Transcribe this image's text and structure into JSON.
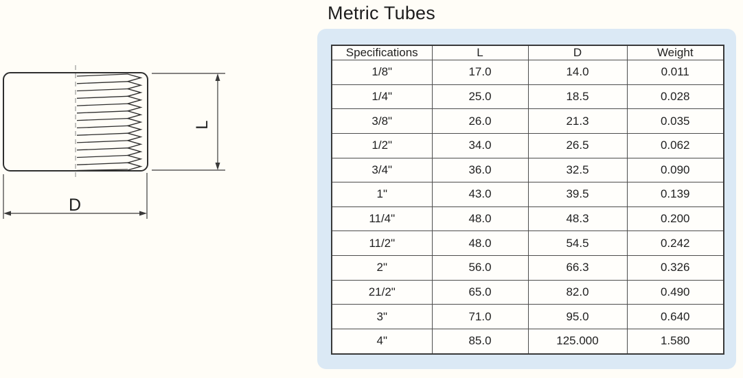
{
  "page": {
    "background": "#fffdf7"
  },
  "header": {
    "title": "Metric Tubes"
  },
  "diagram": {
    "d_label": "D",
    "l_label": "L"
  },
  "table": {
    "panel_color": "#dbe9f5",
    "border_color": "#383838",
    "headers": [
      "Specifications",
      "L",
      "D",
      "Weight"
    ],
    "rows": [
      [
        "1/8\"",
        "17.0",
        "14.0",
        "0.011"
      ],
      [
        "1/4\"",
        "25.0",
        "18.5",
        "0.028"
      ],
      [
        "3/8\"",
        "26.0",
        "21.3",
        "0.035"
      ],
      [
        "1/2\"",
        "34.0",
        "26.5",
        "0.062"
      ],
      [
        "3/4\"",
        "36.0",
        "32.5",
        "0.090"
      ],
      [
        "1\"",
        "43.0",
        "39.5",
        "0.139"
      ],
      [
        "11/4\"",
        "48.0",
        "48.3",
        "0.200"
      ],
      [
        "11/2\"",
        "48.0",
        "54.5",
        "0.242"
      ],
      [
        "2\"",
        "56.0",
        "66.3",
        "0.326"
      ],
      [
        "21/2\"",
        "65.0",
        "82.0",
        "0.490"
      ],
      [
        "3\"",
        "71.0",
        "95.0",
        "0.640"
      ],
      [
        "4\"",
        "85.0",
        "125.000",
        "1.580"
      ]
    ]
  }
}
